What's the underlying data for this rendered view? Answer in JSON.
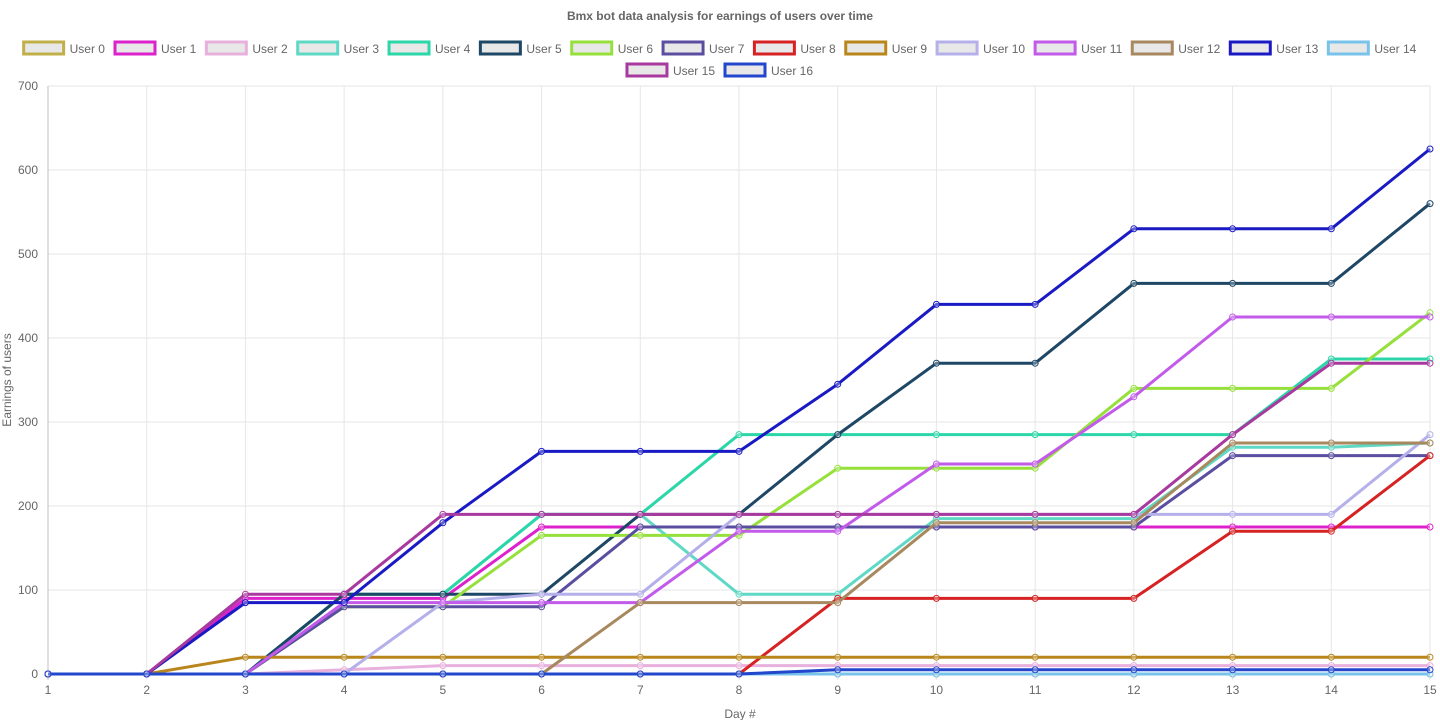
{
  "chart_data": {
    "type": "line",
    "title": "Bmx bot data analysis for earnings of users over time",
    "xlabel": "Day #",
    "ylabel": "Earnings of users",
    "x": [
      1,
      2,
      3,
      4,
      5,
      6,
      7,
      8,
      9,
      10,
      11,
      12,
      13,
      14,
      15
    ],
    "ylim": [
      0,
      700
    ],
    "yticks": [
      0,
      100,
      200,
      300,
      400,
      500,
      600,
      700
    ],
    "grid": true,
    "legend_position": "top",
    "series": [
      {
        "name": "User 0",
        "color": "#c1b04a",
        "values": [
          0,
          0,
          0,
          0,
          0,
          0,
          0,
          0,
          0,
          0,
          0,
          0,
          0,
          0,
          0
        ]
      },
      {
        "name": "User 1",
        "color": "#dd22cc",
        "values": [
          0,
          0,
          90,
          90,
          90,
          175,
          175,
          175,
          175,
          175,
          175,
          175,
          175,
          175,
          175
        ]
      },
      {
        "name": "User 2",
        "color": "#e8b0dd",
        "values": [
          0,
          0,
          0,
          5,
          10,
          10,
          10,
          10,
          10,
          10,
          10,
          10,
          10,
          10,
          10
        ]
      },
      {
        "name": "User 3",
        "color": "#5fd9c5",
        "values": [
          0,
          0,
          0,
          95,
          95,
          190,
          190,
          95,
          95,
          185,
          185,
          185,
          270,
          270,
          275
        ]
      },
      {
        "name": "User 4",
        "color": "#2bd6a8",
        "values": [
          0,
          0,
          0,
          95,
          95,
          190,
          190,
          285,
          285,
          285,
          285,
          285,
          285,
          375,
          375
        ]
      },
      {
        "name": "User 5",
        "color": "#1e4766",
        "values": [
          0,
          0,
          0,
          95,
          95,
          95,
          190,
          190,
          285,
          370,
          370,
          465,
          465,
          465,
          560
        ]
      },
      {
        "name": "User 6",
        "color": "#96e03c",
        "values": [
          0,
          0,
          0,
          80,
          80,
          165,
          165,
          165,
          245,
          245,
          245,
          340,
          340,
          340,
          430
        ]
      },
      {
        "name": "User 7",
        "color": "#5a4ea0",
        "values": [
          0,
          0,
          0,
          80,
          80,
          80,
          175,
          175,
          175,
          175,
          175,
          175,
          260,
          260,
          260
        ]
      },
      {
        "name": "User 8",
        "color": "#d62222",
        "values": [
          0,
          0,
          0,
          0,
          0,
          0,
          0,
          0,
          90,
          90,
          90,
          90,
          170,
          170,
          260
        ]
      },
      {
        "name": "User 9",
        "color": "#b8861b",
        "values": [
          0,
          0,
          20,
          20,
          20,
          20,
          20,
          20,
          20,
          20,
          20,
          20,
          20,
          20,
          20
        ]
      },
      {
        "name": "User 10",
        "color": "#b5b0ea",
        "values": [
          0,
          0,
          0,
          0,
          85,
          95,
          95,
          190,
          190,
          190,
          190,
          190,
          190,
          190,
          285
        ]
      },
      {
        "name": "User 11",
        "color": "#c25aea",
        "values": [
          0,
          0,
          0,
          85,
          85,
          85,
          85,
          170,
          170,
          250,
          250,
          330,
          425,
          425,
          425
        ]
      },
      {
        "name": "User 12",
        "color": "#a8885e",
        "values": [
          0,
          0,
          0,
          0,
          0,
          0,
          85,
          85,
          85,
          180,
          180,
          180,
          275,
          275,
          275
        ]
      },
      {
        "name": "User 13",
        "color": "#1a1ac4",
        "values": [
          0,
          0,
          85,
          85,
          180,
          265,
          265,
          265,
          345,
          440,
          440,
          530,
          530,
          530,
          625
        ]
      },
      {
        "name": "User 14",
        "color": "#78c3ea",
        "values": [
          0,
          0,
          0,
          0,
          0,
          0,
          0,
          0,
          0,
          0,
          0,
          0,
          0,
          0,
          0
        ]
      },
      {
        "name": "User 15",
        "color": "#a8399e",
        "values": [
          0,
          0,
          95,
          95,
          190,
          190,
          190,
          190,
          190,
          190,
          190,
          190,
          285,
          370,
          370
        ]
      },
      {
        "name": "User 16",
        "color": "#2246cc",
        "values": [
          0,
          0,
          0,
          0,
          0,
          0,
          0,
          0,
          5,
          5,
          5,
          5,
          5,
          5,
          5
        ]
      }
    ]
  }
}
